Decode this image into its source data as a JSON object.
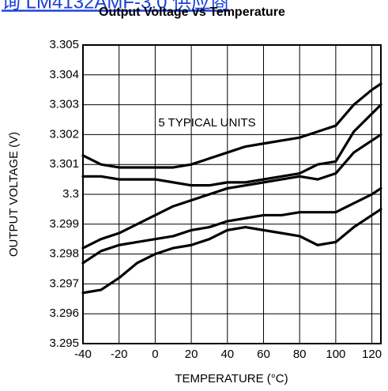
{
  "link_text": "询 LM4132AMF-3.0 供应商",
  "chart_data": {
    "type": "line",
    "title": "Output Voltage vs Temperature",
    "x_label": "TEMPERATURE (°C)",
    "y_label": "OUTPUT VOLTAGE (V)",
    "annotation": "5 TYPICAL UNITS",
    "x": [
      -40,
      -30,
      -20,
      -10,
      0,
      10,
      20,
      30,
      40,
      50,
      60,
      70,
      80,
      90,
      100,
      110,
      120,
      125
    ],
    "series": [
      {
        "color": "#000000",
        "values": [
          3.3013,
          3.301,
          3.3009,
          3.3009,
          3.3009,
          3.3009,
          3.301,
          3.3012,
          3.3014,
          3.3016,
          3.3017,
          3.3018,
          3.3019,
          3.3021,
          3.3023,
          3.303,
          3.3035,
          3.3037
        ]
      },
      {
        "color": "#000000",
        "values": [
          3.3006,
          3.3006,
          3.3005,
          3.3005,
          3.3005,
          3.3004,
          3.3003,
          3.3003,
          3.3004,
          3.3004,
          3.3005,
          3.3006,
          3.3007,
          3.301,
          3.3011,
          3.3021,
          3.3027,
          3.303
        ]
      },
      {
        "color": "#000000",
        "values": [
          3.2982,
          3.2985,
          3.2987,
          3.299,
          3.2993,
          3.2996,
          3.2998,
          3.3,
          3.3002,
          3.3003,
          3.3004,
          3.3005,
          3.3006,
          3.3005,
          3.3007,
          3.3014,
          3.3018,
          3.302
        ]
      },
      {
        "color": "#000000",
        "values": [
          3.2977,
          3.2981,
          3.2983,
          3.2984,
          3.2985,
          3.2986,
          3.2988,
          3.2989,
          3.2991,
          3.2992,
          3.2993,
          3.2993,
          3.2994,
          3.2994,
          3.2994,
          3.2997,
          3.3,
          3.3002
        ]
      },
      {
        "color": "#000000",
        "values": [
          3.2967,
          3.2968,
          3.2972,
          3.2977,
          3.298,
          3.2982,
          3.2983,
          3.2985,
          3.2988,
          3.2989,
          3.2988,
          3.2987,
          3.2986,
          3.2983,
          3.2984,
          3.2989,
          3.2993,
          3.2995
        ]
      }
    ],
    "xlim": [
      -40,
      125
    ],
    "xticks": [
      -40,
      -20,
      0,
      20,
      40,
      60,
      80,
      100,
      120
    ],
    "ylim": [
      3.295,
      3.305
    ],
    "yticks": [
      3.295,
      3.296,
      3.297,
      3.298,
      3.299,
      3.3,
      3.301,
      3.302,
      3.303,
      3.304,
      3.305
    ],
    "grid": true
  }
}
